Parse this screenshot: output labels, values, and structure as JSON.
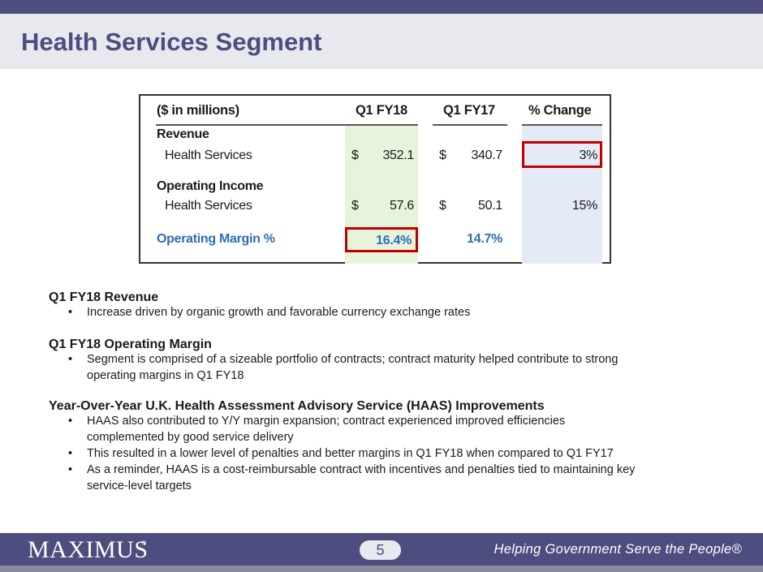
{
  "title": "Health Services Segment",
  "table": {
    "headers": {
      "label": "($ in millions)",
      "fy18": "Q1 FY18",
      "fy17": "Q1 FY17",
      "change": "% Change"
    },
    "revenue_heading": "Revenue",
    "revenue_row": {
      "label": "Health Services",
      "cur18": "$",
      "fy18": "352.1",
      "cur17": "$",
      "fy17": "340.7",
      "change": "3%"
    },
    "oi_heading": "Operating Income",
    "oi_row": {
      "label": "Health Services",
      "cur18": "$",
      "fy18": "57.6",
      "cur17": "$",
      "fy17": "50.1",
      "change": "15%"
    },
    "margin_row": {
      "label": "Operating Margin %",
      "fy18": "16.4%",
      "fy17": "14.7%"
    }
  },
  "sections": {
    "revenue_heading": "Q1 FY18 Revenue",
    "revenue_bullet": "Increase driven by organic growth and favorable currency exchange rates",
    "margin_heading": "Q1 FY18 Operating Margin",
    "margin_bullet_line1": "Segment is comprised of a sizeable portfolio of contracts; contract maturity helped contribute to strong",
    "margin_bullet_line2": "operating margins in Q1 FY18",
    "haas_heading": "Year-Over-Year U.K. Health Assessment Advisory Service (HAAS) Improvements",
    "haas_bullet1_line1": "HAAS also contributed to Y/Y margin expansion; contract experienced improved efficiencies",
    "haas_bullet1_line2": "complemented by good service delivery",
    "haas_bullet2": "This resulted in a lower level of penalties and better margins in Q1 FY18 when compared to Q1 FY17",
    "haas_bullet3_line1": "As a reminder, HAAS is a cost-reimbursable contract with incentives and penalties tied to maintaining key",
    "haas_bullet3_line2": "service-level targets",
    "bullet_char": "•"
  },
  "footer": {
    "logo": "MAXIMUS",
    "logo_mark": "®",
    "page_number": "5",
    "tagline": "Helping Government Serve the People®"
  },
  "colors": {
    "brand": "#4d4d80",
    "highlight": "#c00000",
    "margin_text": "#2e6db4",
    "fy18_column": "#e6f4dc",
    "change_column": "#e4ebf6"
  }
}
